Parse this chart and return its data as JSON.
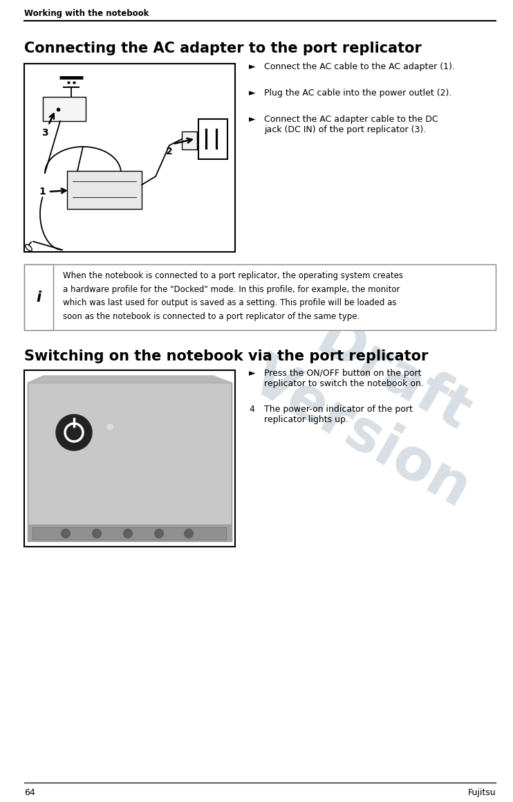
{
  "page_width": 7.42,
  "page_height": 11.59,
  "dpi": 100,
  "bg": "#ffffff",
  "header": "Working with the notebook",
  "header_fs": 8.5,
  "s1_title": "Connecting the AC adapter to the port replicator",
  "s1_fs": 15,
  "s1_bullets": [
    "Connect the AC cable to the AC adapter (1).",
    "Plug the AC cable into the power outlet (2).",
    "Connect the AC adapter cable to the DC\njack (DC IN) of the port replicator (3)."
  ],
  "info_text_lines": [
    "When the notebook is connected to a port replicator, the operating system creates",
    "a hardware profile for the \"Docked\" mode. In this profile, for example, the monitor",
    "which was last used for output is saved as a setting. This profile will be loaded as",
    "soon as the notebook is connected to a port replicator of the same type."
  ],
  "s2_title": "Switching on the notebook via the port replicator",
  "s2_fs": 15,
  "s2_b1": "Press the ON/OFF button on the port\nreplicator to switch the notebook on.",
  "s2_b2": "The power-on indicator of the port\nreplicator lights up.",
  "s2_num": "4",
  "footer_l": "64",
  "footer_r": "Fujitsu",
  "wm_color": "#b8c4d0",
  "bullet": "►",
  "body_fs": 9,
  "lm": 0.35,
  "rm": 7.17
}
